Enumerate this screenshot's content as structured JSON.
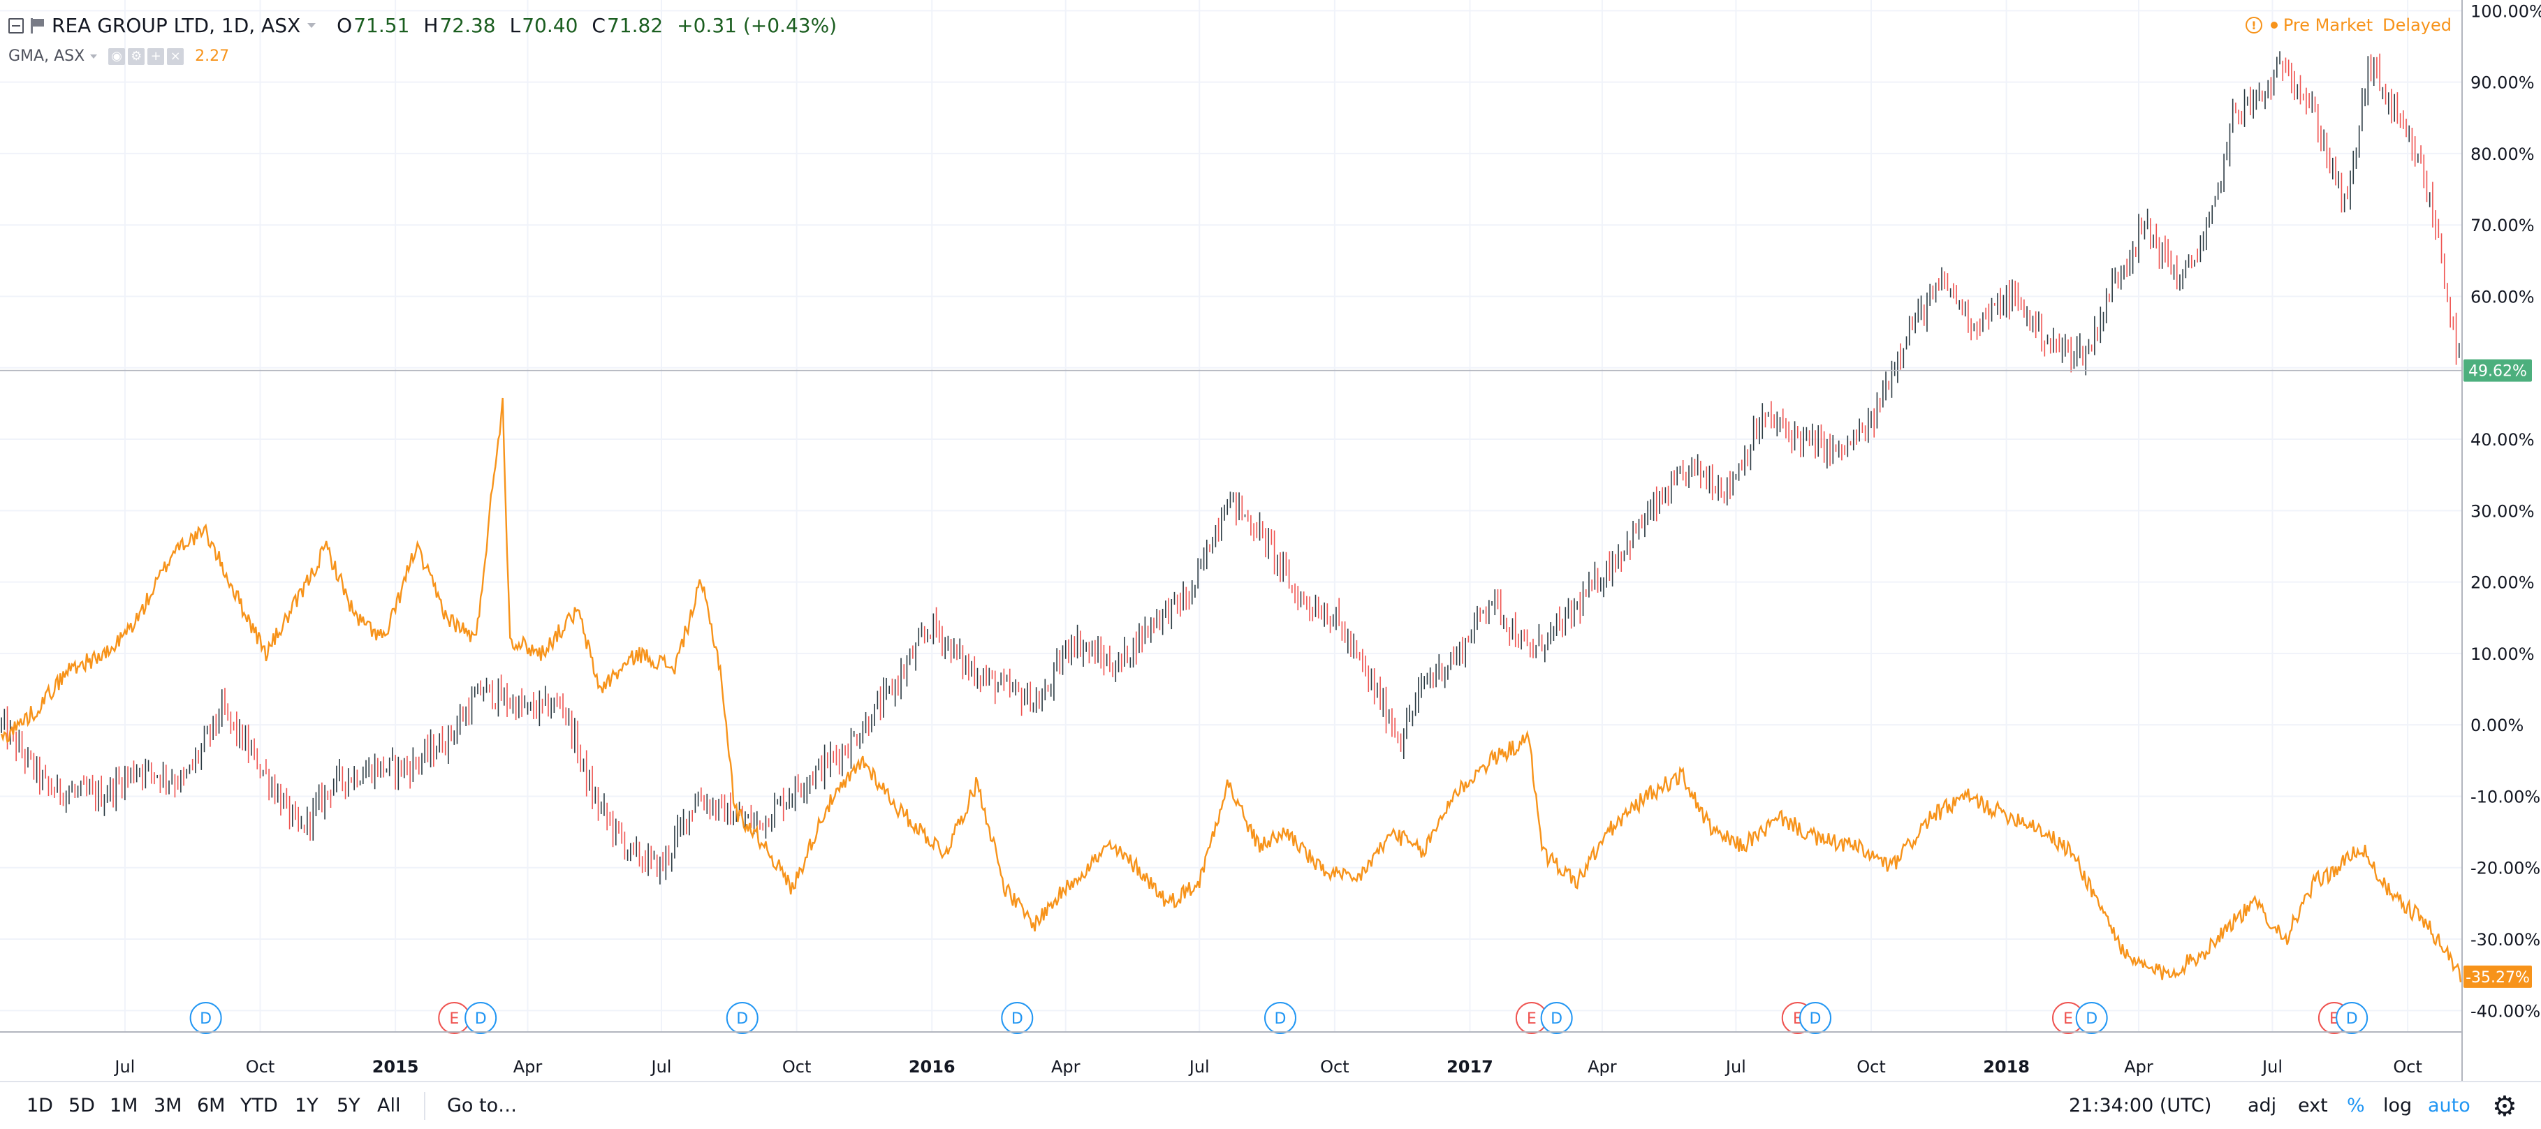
{
  "legend": {
    "symbol": "REA GROUP LTD, 1D, ASX",
    "open_label": "O",
    "open": "71.51",
    "high_label": "H",
    "high": "72.38",
    "low_label": "L",
    "low": "70.40",
    "close_label": "C",
    "close": "71.82",
    "change": "+0.31 (+0.43%)",
    "compare_symbol": "GMA, ASX",
    "compare_value": "2.27"
  },
  "status": {
    "warning": "!",
    "text": "Pre Market",
    "delayed": "Delayed"
  },
  "toolbar": {
    "ranges": [
      "1D",
      "5D",
      "1M",
      "3M",
      "6M",
      "YTD",
      "1Y",
      "5Y",
      "All"
    ],
    "goto": "Go to…",
    "time": "21:34:00 (UTC)",
    "adj": "adj",
    "ext": "ext",
    "percent": "%",
    "log": "log",
    "auto": "auto"
  },
  "colors": {
    "main": "#26a69a",
    "down": "#ef5350",
    "compare": "#f7931a",
    "grid": "#f0f3fa",
    "dividend": "#2196f3",
    "earnings": "#ef5350"
  },
  "chart_data": {
    "type": "line",
    "scale": "percent",
    "grid": true,
    "x_tick_labels": [
      "Jul",
      "Oct",
      "2015",
      "Apr",
      "Jul",
      "Oct",
      "2016",
      "Apr",
      "Jul",
      "Oct",
      "2017",
      "Apr",
      "Jul",
      "Oct",
      "2018",
      "Apr",
      "Jul",
      "Oct"
    ],
    "x_ticks": [
      "2014-07-01",
      "2014-10-01",
      "2015-01-01",
      "2015-04-01",
      "2015-07-01",
      "2015-10-01",
      "2016-01-01",
      "2016-04-01",
      "2016-07-01",
      "2016-10-01",
      "2017-01-01",
      "2017-04-01",
      "2017-07-01",
      "2017-10-01",
      "2018-01-01",
      "2018-04-01",
      "2018-07-01",
      "2018-10-01"
    ],
    "y_tick_labels": [
      "100.00%",
      "90.00%",
      "80.00%",
      "70.00%",
      "60.00%",
      "40.00%",
      "30.00%",
      "20.00%",
      "10.00%",
      "0.00%",
      "-10.00%",
      "-20.00%",
      "-30.00%",
      "-40.00%"
    ],
    "y_ticks": [
      100,
      90,
      80,
      70,
      60,
      40,
      30,
      20,
      10,
      0,
      -10,
      -20,
      -30,
      -40
    ],
    "xlim": [
      "2014-04-07",
      "2018-11-07"
    ],
    "ylim": [
      -43,
      101.5
    ],
    "series": [
      {
        "name": "REA GROUP LTD",
        "type": "candlestick-line",
        "last_label": "49.62%",
        "last": 49.62,
        "points": [
          [
            "2014-04-08",
            0
          ],
          [
            "2014-05-10",
            -9
          ],
          [
            "2014-06-15",
            -10
          ],
          [
            "2014-07-10",
            -6
          ],
          [
            "2014-08-10",
            -8
          ],
          [
            "2014-09-05",
            2
          ],
          [
            "2014-10-05",
            -7
          ],
          [
            "2014-10-28",
            -15
          ],
          [
            "2014-11-20",
            -8
          ],
          [
            "2014-12-20",
            -6
          ],
          [
            "2015-01-10",
            -6
          ],
          [
            "2015-02-05",
            -2
          ],
          [
            "2015-03-01",
            5
          ],
          [
            "2015-04-01",
            2
          ],
          [
            "2015-04-25",
            3
          ],
          [
            "2015-05-15",
            -10
          ],
          [
            "2015-06-10",
            -18
          ],
          [
            "2015-07-01",
            -20
          ],
          [
            "2015-07-25",
            -10
          ],
          [
            "2015-08-10",
            -12
          ],
          [
            "2015-09-05",
            -14
          ],
          [
            "2015-10-05",
            -8
          ],
          [
            "2015-11-05",
            -3
          ],
          [
            "2015-12-05",
            5
          ],
          [
            "2016-01-01",
            14
          ],
          [
            "2016-01-25",
            8
          ],
          [
            "2016-02-20",
            5
          ],
          [
            "2016-03-15",
            3
          ],
          [
            "2016-04-05",
            12
          ],
          [
            "2016-05-05",
            8
          ],
          [
            "2016-06-01",
            15
          ],
          [
            "2016-06-25",
            18
          ],
          [
            "2016-07-20",
            32
          ],
          [
            "2016-08-15",
            26
          ],
          [
            "2016-09-05",
            18
          ],
          [
            "2016-10-01",
            15
          ],
          [
            "2016-10-25",
            6
          ],
          [
            "2016-11-15",
            -2
          ],
          [
            "2016-12-01",
            6
          ],
          [
            "2016-12-25",
            10
          ],
          [
            "2017-01-15",
            18
          ],
          [
            "2017-02-10",
            10
          ],
          [
            "2017-03-05",
            14
          ],
          [
            "2017-04-05",
            22
          ],
          [
            "2017-05-05",
            30
          ],
          [
            "2017-06-01",
            36
          ],
          [
            "2017-06-25",
            33
          ],
          [
            "2017-07-20",
            43
          ],
          [
            "2017-08-15",
            40
          ],
          [
            "2017-09-10",
            38
          ],
          [
            "2017-10-01",
            42
          ],
          [
            "2017-10-25",
            55
          ],
          [
            "2017-11-20",
            62
          ],
          [
            "2017-12-10",
            56
          ],
          [
            "2018-01-05",
            60
          ],
          [
            "2018-02-01",
            53
          ],
          [
            "2018-02-25",
            52
          ],
          [
            "2018-03-15",
            62
          ],
          [
            "2018-04-05",
            70
          ],
          [
            "2018-04-30",
            62
          ],
          [
            "2018-05-20",
            70
          ],
          [
            "2018-06-05",
            86
          ],
          [
            "2018-06-25",
            88
          ],
          [
            "2018-07-10",
            93
          ],
          [
            "2018-07-30",
            85
          ],
          [
            "2018-08-20",
            72
          ],
          [
            "2018-09-05",
            93
          ],
          [
            "2018-09-25",
            84
          ],
          [
            "2018-10-10",
            78
          ],
          [
            "2018-10-22",
            68
          ],
          [
            "2018-11-01",
            55
          ],
          [
            "2018-11-06",
            49.62
          ]
        ]
      },
      {
        "name": "GMA, ASX",
        "type": "line",
        "last_label": "-35.27%",
        "last": -35.27,
        "points": [
          [
            "2014-04-08",
            -2
          ],
          [
            "2014-05-01",
            2
          ],
          [
            "2014-05-25",
            8
          ],
          [
            "2014-06-20",
            10
          ],
          [
            "2014-07-10",
            15
          ],
          [
            "2014-08-05",
            25
          ],
          [
            "2014-08-25",
            27
          ],
          [
            "2014-09-15",
            18
          ],
          [
            "2014-10-05",
            10
          ],
          [
            "2014-10-28",
            18
          ],
          [
            "2014-11-15",
            25
          ],
          [
            "2014-12-05",
            15
          ],
          [
            "2014-12-25",
            12
          ],
          [
            "2015-01-15",
            25
          ],
          [
            "2015-02-05",
            15
          ],
          [
            "2015-02-25",
            12
          ],
          [
            "2015-03-10",
            37
          ],
          [
            "2015-03-15",
            45
          ],
          [
            "2015-03-20",
            12
          ],
          [
            "2015-04-10",
            10
          ],
          [
            "2015-05-05",
            16
          ],
          [
            "2015-05-20",
            5
          ],
          [
            "2015-06-15",
            10
          ],
          [
            "2015-07-10",
            8
          ],
          [
            "2015-07-28",
            20
          ],
          [
            "2015-08-10",
            8
          ],
          [
            "2015-08-20",
            -12
          ],
          [
            "2015-09-10",
            -17
          ],
          [
            "2015-09-28",
            -23
          ],
          [
            "2015-10-20",
            -12
          ],
          [
            "2015-11-15",
            -5
          ],
          [
            "2015-12-10",
            -12
          ],
          [
            "2016-01-10",
            -18
          ],
          [
            "2016-02-01",
            -8
          ],
          [
            "2016-02-20",
            -23
          ],
          [
            "2016-03-10",
            -28
          ],
          [
            "2016-04-05",
            -22
          ],
          [
            "2016-05-01",
            -17
          ],
          [
            "2016-05-20",
            -20
          ],
          [
            "2016-06-10",
            -25
          ],
          [
            "2016-07-01",
            -22
          ],
          [
            "2016-07-20",
            -8
          ],
          [
            "2016-08-10",
            -17
          ],
          [
            "2016-08-30",
            -15
          ],
          [
            "2016-09-20",
            -20
          ],
          [
            "2016-10-15",
            -22
          ],
          [
            "2016-11-10",
            -15
          ],
          [
            "2016-11-30",
            -18
          ],
          [
            "2016-12-20",
            -10
          ],
          [
            "2017-01-15",
            -5
          ],
          [
            "2017-02-10",
            -2
          ],
          [
            "2017-02-20",
            -18
          ],
          [
            "2017-03-15",
            -22
          ],
          [
            "2017-04-05",
            -15
          ],
          [
            "2017-05-01",
            -10
          ],
          [
            "2017-05-25",
            -7
          ],
          [
            "2017-06-15",
            -15
          ],
          [
            "2017-07-05",
            -17
          ],
          [
            "2017-08-01",
            -13
          ],
          [
            "2017-08-25",
            -16
          ],
          [
            "2017-09-20",
            -17
          ],
          [
            "2017-10-15",
            -20
          ],
          [
            "2017-11-10",
            -13
          ],
          [
            "2017-12-05",
            -10
          ],
          [
            "2017-12-25",
            -12
          ],
          [
            "2018-01-20",
            -14
          ],
          [
            "2018-02-15",
            -18
          ],
          [
            "2018-03-05",
            -25
          ],
          [
            "2018-03-25",
            -33
          ],
          [
            "2018-04-20",
            -35
          ],
          [
            "2018-05-15",
            -32
          ],
          [
            "2018-06-01",
            -28
          ],
          [
            "2018-06-20",
            -25
          ],
          [
            "2018-07-10",
            -30
          ],
          [
            "2018-07-30",
            -22
          ],
          [
            "2018-08-15",
            -20
          ],
          [
            "2018-08-30",
            -17
          ],
          [
            "2018-09-20",
            -24
          ],
          [
            "2018-10-10",
            -27
          ],
          [
            "2018-10-25",
            -31
          ],
          [
            "2018-11-06",
            -35.27
          ]
        ]
      }
    ],
    "events": [
      {
        "type": "dividend",
        "label": "D",
        "date": "2014-08-25"
      },
      {
        "type": "earnings",
        "label": "E",
        "date": "2015-02-10"
      },
      {
        "type": "dividend",
        "label": "D",
        "date": "2015-02-28"
      },
      {
        "type": "dividend",
        "label": "D",
        "date": "2015-08-25"
      },
      {
        "type": "dividend",
        "label": "D",
        "date": "2016-02-28"
      },
      {
        "type": "dividend",
        "label": "D",
        "date": "2016-08-25"
      },
      {
        "type": "earnings",
        "label": "E",
        "date": "2017-02-12"
      },
      {
        "type": "dividend",
        "label": "D",
        "date": "2017-03-01"
      },
      {
        "type": "earnings",
        "label": "E",
        "date": "2017-08-12"
      },
      {
        "type": "dividend",
        "label": "D",
        "date": "2017-08-24"
      },
      {
        "type": "earnings",
        "label": "E",
        "date": "2018-02-12"
      },
      {
        "type": "dividend",
        "label": "D",
        "date": "2018-02-28"
      },
      {
        "type": "earnings",
        "label": "E",
        "date": "2018-08-12"
      },
      {
        "type": "dividend",
        "label": "D",
        "date": "2018-08-24"
      }
    ]
  }
}
